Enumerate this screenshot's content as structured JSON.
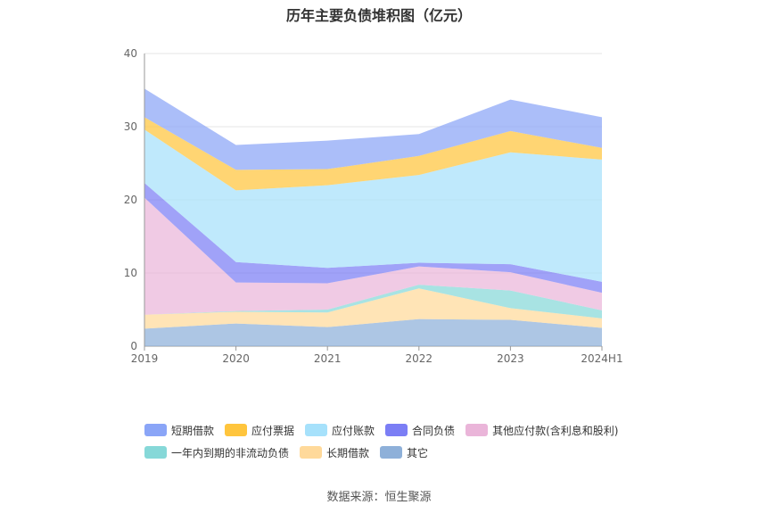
{
  "chart_data": {
    "type": "area",
    "stacked": true,
    "title": "历年主要负债堆积图（亿元）",
    "source": "数据来源：恒生聚源",
    "categories": [
      "2019",
      "2020",
      "2021",
      "2022",
      "2023",
      "2024H1"
    ],
    "ylim": [
      0,
      40
    ],
    "yticks": [
      "0",
      "10",
      "20",
      "30",
      "40"
    ],
    "grid": true,
    "legend_position": "bottom",
    "series": [
      {
        "name": "其它",
        "color": "#8eb0d9",
        "values": [
          2.4,
          3.1,
          2.6,
          3.7,
          3.6,
          2.5
        ]
      },
      {
        "name": "长期借款",
        "color": "#ffd99a",
        "values": [
          1.9,
          1.6,
          2.0,
          4.2,
          1.6,
          1.3
        ]
      },
      {
        "name": "一年内到期的非流动负债",
        "color": "#86d8d8",
        "values": [
          0.0,
          0.1,
          0.4,
          0.5,
          2.4,
          1.1
        ]
      },
      {
        "name": "其他应付款(含利息和股利)",
        "color": "#eab5d9",
        "values": [
          16.0,
          3.9,
          3.6,
          2.5,
          2.5,
          2.4
        ]
      },
      {
        "name": "合同负债",
        "color": "#7b7ef5",
        "values": [
          2.0,
          2.8,
          2.1,
          0.5,
          1.1,
          1.5
        ]
      },
      {
        "name": "应付账款",
        "color": "#a6e1fb",
        "values": [
          7.3,
          9.8,
          11.3,
          12.0,
          15.3,
          16.7
        ]
      },
      {
        "name": "应付票据",
        "color": "#ffc53d",
        "values": [
          1.7,
          2.8,
          2.2,
          2.6,
          2.9,
          1.6
        ]
      },
      {
        "name": "短期借款",
        "color": "#8aa5f7",
        "values": [
          3.9,
          3.4,
          3.9,
          3.0,
          4.3,
          4.2
        ]
      }
    ]
  },
  "legend_order": [
    "短期借款",
    "应付票据",
    "应付账款",
    "合同负债",
    "其他应付款(含利息和股利)",
    "一年内到期的非流动负债",
    "长期借款",
    "其它"
  ]
}
